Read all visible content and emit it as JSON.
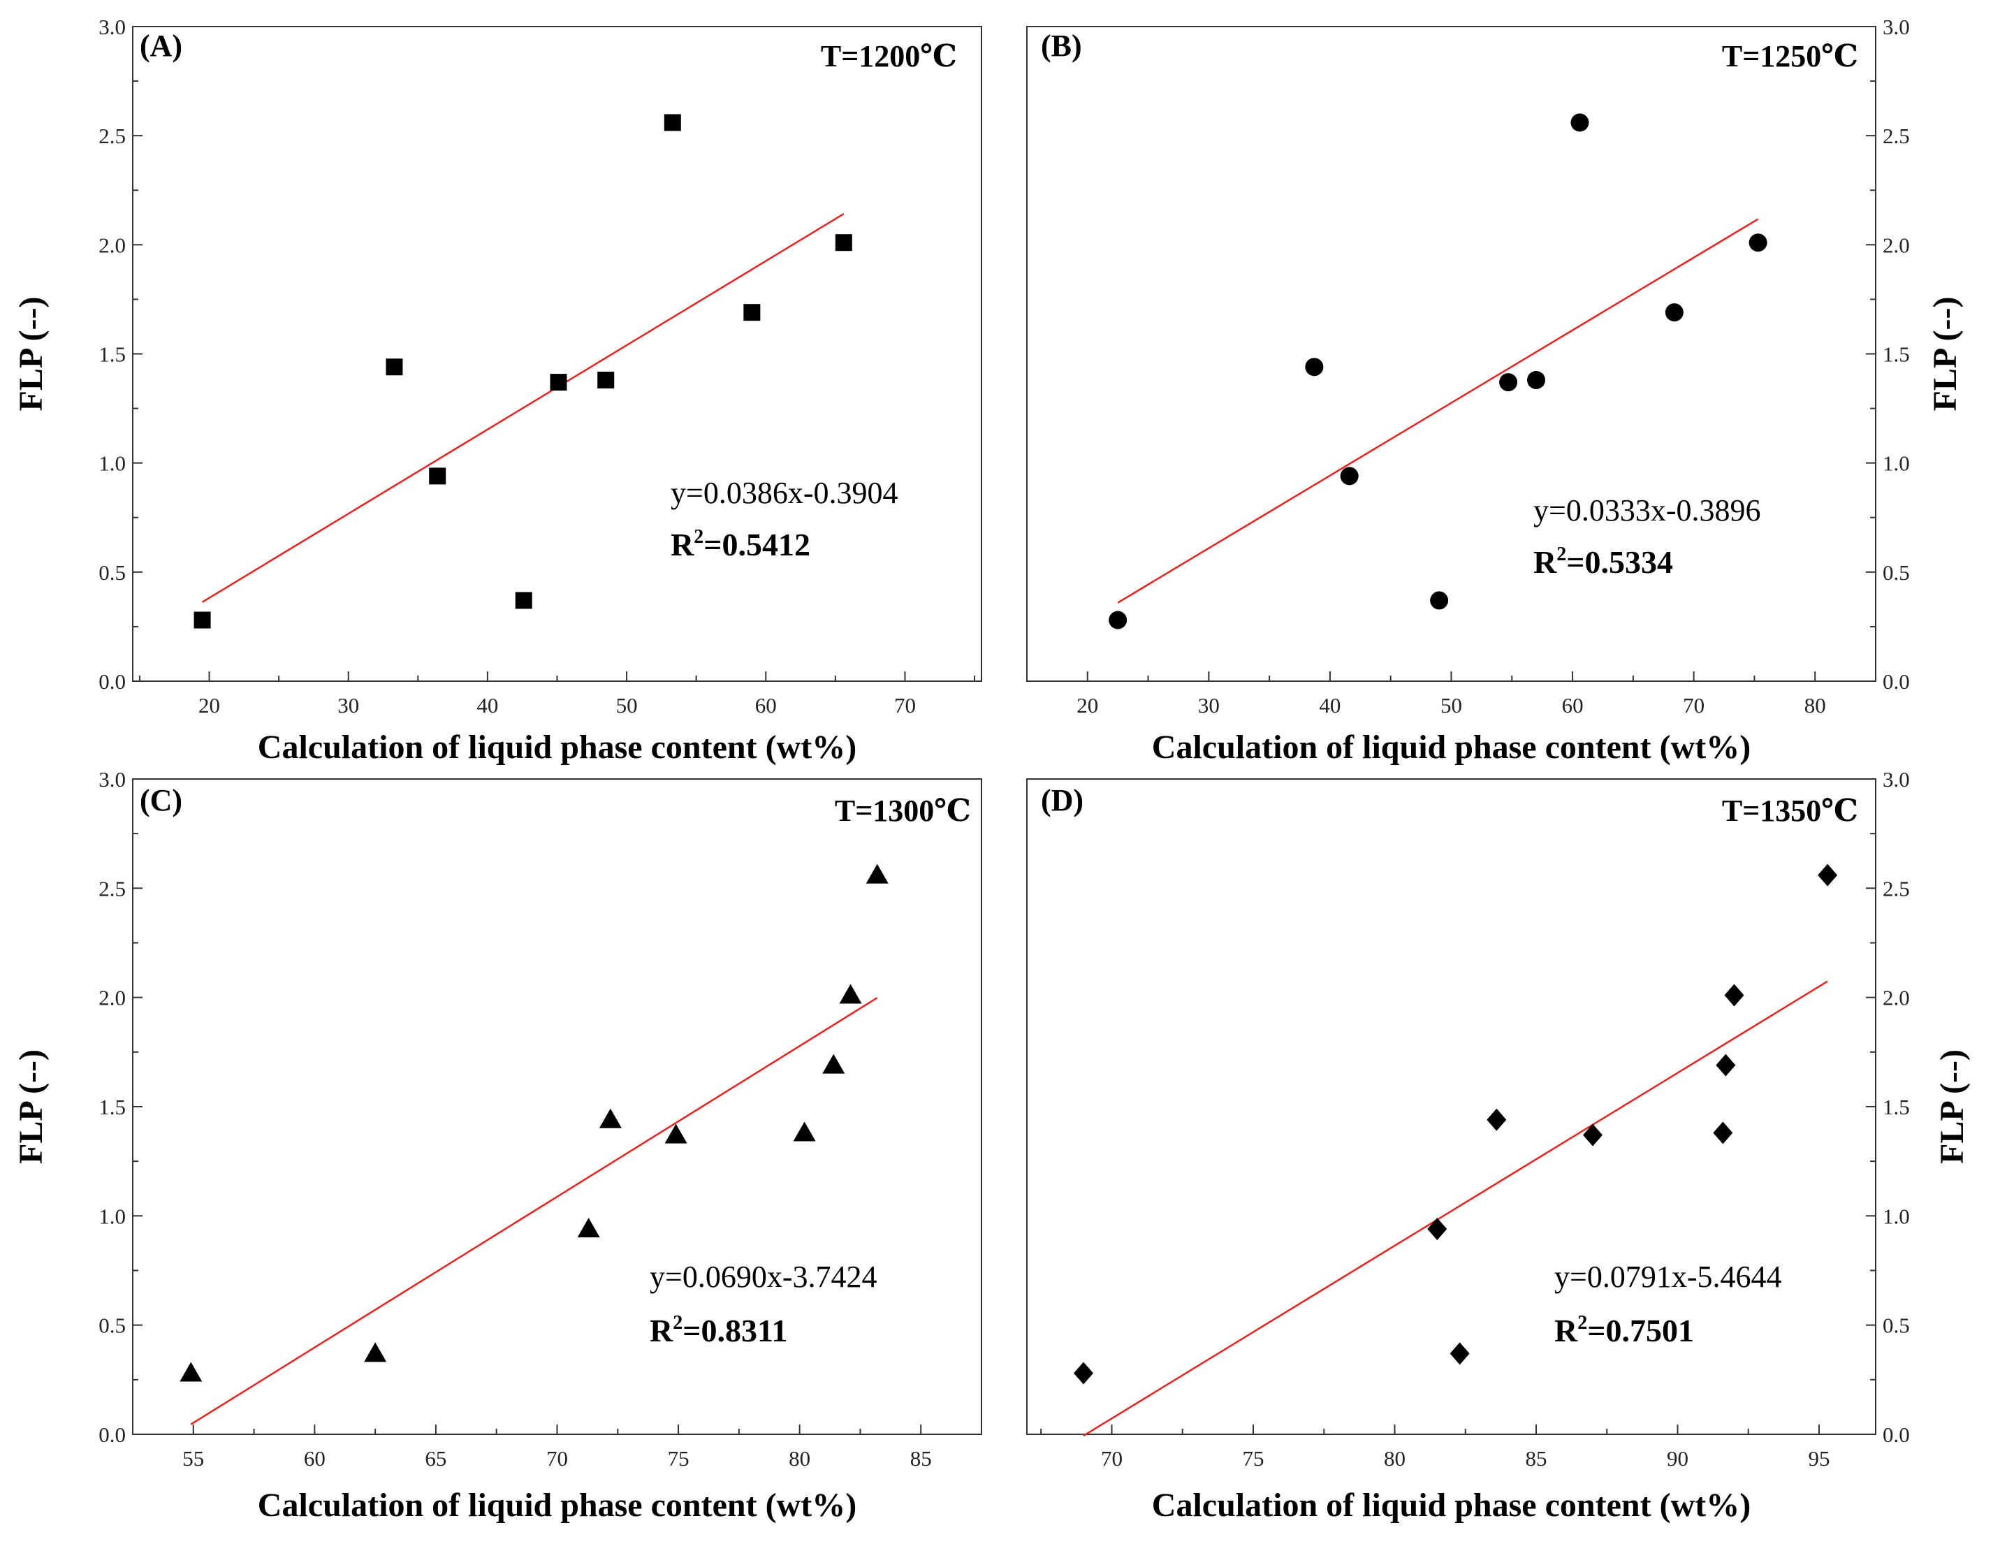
{
  "figure": {
    "shared_xlabel": "Calculation of liquid phase content (wt%)",
    "shared_ylabel": "FLP (--)",
    "fit_color": "#e8221e",
    "marker_color": "#000000"
  },
  "chart_data": [
    {
      "type": "scatter",
      "panel": "(A)",
      "temperature": "T=1200℃",
      "marker": "square",
      "xlabel": "Calculation of liquid phase content (wt%)",
      "ylabel": "FLP (--)",
      "xlim": [
        14.5,
        75.5
      ],
      "ylim": [
        0,
        3.0
      ],
      "xticks": [
        20,
        30,
        40,
        50,
        60,
        70
      ],
      "yticks": [
        0.0,
        0.5,
        1.0,
        1.5,
        2.0,
        2.5,
        3.0
      ],
      "ytick_labels": [
        "0.0",
        "0.5",
        "1.0",
        "1.5",
        "2.0",
        "2.5",
        "3.0"
      ],
      "y_axis_side": "left",
      "x": [
        19.5,
        33.3,
        36.4,
        42.6,
        45.1,
        48.5,
        53.3,
        59.0,
        65.6
      ],
      "y": [
        0.28,
        1.44,
        0.94,
        0.37,
        1.37,
        1.38,
        2.56,
        1.69,
        2.01
      ],
      "fit": {
        "slope": 0.0386,
        "intercept": -0.3904,
        "x_range": [
          19.5,
          65.6
        ]
      },
      "equation": "y=0.0386x-0.3904",
      "r2_prefix": "R",
      "r2_sup": "2",
      "r2_value": "=0.5412"
    },
    {
      "type": "scatter",
      "panel": "(B)",
      "temperature": "T=1250℃",
      "marker": "circle",
      "xlabel": "Calculation of liquid phase content (wt%)",
      "ylabel": "FLP (--)",
      "xlim": [
        15,
        85
      ],
      "ylim": [
        0,
        3.0
      ],
      "xticks": [
        20,
        30,
        40,
        50,
        60,
        70,
        80
      ],
      "yticks": [
        0.0,
        0.5,
        1.0,
        1.5,
        2.0,
        2.5,
        3.0
      ],
      "ytick_labels": [
        "0.0",
        "0.5",
        "1.0",
        "1.5",
        "2.0",
        "2.5",
        "3.0"
      ],
      "y_axis_side": "right",
      "x": [
        22.5,
        38.7,
        41.6,
        49.0,
        54.7,
        57.0,
        60.6,
        68.4,
        75.3
      ],
      "y": [
        0.28,
        1.44,
        0.94,
        0.37,
        1.37,
        1.38,
        2.56,
        1.69,
        2.01
      ],
      "fit": {
        "slope": 0.0333,
        "intercept": -0.3896,
        "x_range": [
          22.5,
          75.3
        ]
      },
      "equation": "y=0.0333x-0.3896",
      "r2_prefix": "R",
      "r2_sup": "2",
      "r2_value": "=0.5334"
    },
    {
      "type": "scatter",
      "panel": "(C)",
      "temperature": "T=1300℃",
      "marker": "triangle",
      "xlabel": "Calculation of liquid phase content (wt%)",
      "ylabel": "FLP (--)",
      "xlim": [
        52.5,
        87.5
      ],
      "ylim": [
        0,
        3.0
      ],
      "xticks": [
        55,
        60,
        65,
        70,
        75,
        80,
        85
      ],
      "yticks": [
        0.0,
        0.5,
        1.0,
        1.5,
        2.0,
        2.5,
        3.0
      ],
      "ytick_labels": [
        "0.0",
        "0.5",
        "1.0",
        "1.5",
        "2.0",
        "2.5",
        "3.0"
      ],
      "y_axis_side": "left",
      "x": [
        54.9,
        62.5,
        71.3,
        72.2,
        74.9,
        80.2,
        81.4,
        82.1,
        83.2
      ],
      "y": [
        0.28,
        0.37,
        0.94,
        1.44,
        1.37,
        1.38,
        1.69,
        2.01,
        2.56
      ],
      "fit": {
        "slope": 0.069,
        "intercept": -3.7424,
        "x_range": [
          54.9,
          83.2
        ]
      },
      "equation": "y=0.0690x-3.7424",
      "r2_prefix": "R",
      "r2_sup": "2",
      "r2_value": "=0.8311"
    },
    {
      "type": "scatter",
      "panel": "(D)",
      "temperature": "T=1350℃",
      "marker": "diamond",
      "xlabel": "Calculation of liquid phase content (wt%)",
      "ylabel": "FLP (--)",
      "xlim": [
        67,
        97
      ],
      "ylim": [
        0,
        3.0
      ],
      "xticks": [
        70,
        75,
        80,
        85,
        90,
        95
      ],
      "yticks": [
        0.0,
        0.5,
        1.0,
        1.5,
        2.0,
        2.5,
        3.0
      ],
      "ytick_labels": [
        "0.0",
        "0.5",
        "1.0",
        "1.5",
        "2.0",
        "2.5",
        "3.0"
      ],
      "y_axis_side": "right",
      "x": [
        69.0,
        81.5,
        82.3,
        83.6,
        87.0,
        91.6,
        91.7,
        92.0,
        95.3
      ],
      "y": [
        0.28,
        0.94,
        0.37,
        1.44,
        1.37,
        1.38,
        1.69,
        2.01,
        2.56
      ],
      "fit": {
        "slope": 0.0791,
        "intercept": -5.4644,
        "x_range": [
          69.0,
          95.3
        ]
      },
      "equation": "y=0.0791x-5.4644",
      "r2_prefix": "R",
      "r2_sup": "2",
      "r2_value": "=0.7501"
    }
  ]
}
